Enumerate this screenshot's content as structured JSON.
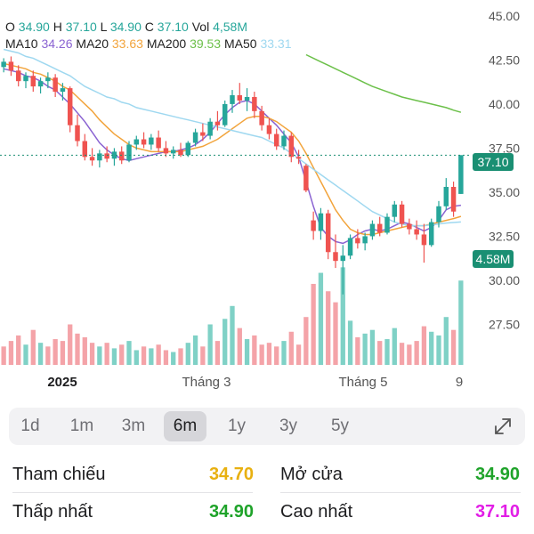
{
  "legend": {
    "open_label": "O",
    "open": "34.90",
    "high_label": "H",
    "high": "37.10",
    "low_label": "L",
    "low": "34.90",
    "close_label": "C",
    "close": "37.10",
    "vol_label": "Vol",
    "vol": "4,58M",
    "ma10_label": "MA10",
    "ma10": "34.26",
    "ma20_label": "MA20",
    "ma20": "33.63",
    "ma200_label": "MA200",
    "ma200": "39.53",
    "ma50_label": "MA50",
    "ma50": "33.31"
  },
  "colors": {
    "up": "#26a69a",
    "down": "#ef5350",
    "up_volume": "#7fd1c6",
    "down_volume": "#f4a3a8",
    "ma10": "#8a63d2",
    "ma20": "#f2a43c",
    "ma200": "#6cc04a",
    "ma50": "#9fd8f0",
    "accent": "#1a8f73"
  },
  "price_tag": "37.10",
  "volume_tag": "4.58M",
  "chart_data": {
    "type": "candlestick",
    "y_axis_ticks": [
      "45.00",
      "42.50",
      "40.00",
      "37.50",
      "35.00",
      "32.50",
      "30.00",
      "27.50"
    ],
    "y_axis_values": [
      45.0,
      42.5,
      40.0,
      37.5,
      35.0,
      32.5,
      30.0,
      27.5
    ],
    "ylim": [
      25.2,
      45.5
    ],
    "x_axis_labels": [
      "2025",
      "Tháng 3",
      "Tháng 5",
      "9"
    ],
    "last_close": 37.1,
    "last_volume": "4.58M",
    "grid": false,
    "series": [
      {
        "name": "MA10",
        "values": [
          42.0,
          41.9,
          41.8,
          41.6,
          41.5,
          41.3,
          41.0,
          40.8,
          40.4,
          40.0,
          39.5,
          39.0,
          38.4,
          37.8,
          37.4,
          37.1,
          36.9,
          36.8,
          36.9,
          37.0,
          37.1,
          37.2,
          37.3,
          37.3,
          37.4,
          37.5,
          37.7,
          38.0,
          38.4,
          38.9,
          39.4,
          39.8,
          40.1,
          40.2,
          40.0,
          39.6,
          39.2,
          38.8,
          38.3,
          37.8,
          37.0,
          35.6,
          34.2,
          33.0,
          32.5,
          32.2,
          32.1,
          32.3,
          32.6,
          32.8,
          32.9,
          32.8,
          32.9,
          33.1,
          33.3,
          33.2,
          33.0,
          32.8,
          33.0,
          33.4,
          34.0,
          34.2,
          34.26
        ]
      },
      {
        "name": "MA20",
        "values": [
          42.3,
          42.2,
          42.1,
          42.0,
          41.8,
          41.7,
          41.5,
          41.3,
          41.0,
          40.8,
          40.4,
          40.0,
          39.6,
          39.1,
          38.7,
          38.3,
          38.0,
          37.7,
          37.5,
          37.4,
          37.3,
          37.3,
          37.3,
          37.3,
          37.3,
          37.4,
          37.5,
          37.6,
          37.8,
          38.0,
          38.3,
          38.6,
          38.9,
          39.2,
          39.3,
          39.3,
          39.2,
          39.0,
          38.7,
          38.4,
          37.9,
          37.2,
          36.4,
          35.6,
          34.8,
          34.0,
          33.4,
          32.9,
          32.7,
          32.6,
          32.6,
          32.7,
          32.8,
          32.9,
          33.0,
          33.1,
          33.1,
          33.1,
          33.2,
          33.3,
          33.4,
          33.5,
          33.63
        ]
      },
      {
        "name": "MA50",
        "values": [
          43.1,
          43.0,
          42.9,
          42.7,
          42.6,
          42.4,
          42.2,
          42.0,
          41.8,
          41.6,
          41.3,
          41.0,
          40.8,
          40.6,
          40.4,
          40.3,
          40.1,
          40.0,
          39.8,
          39.7,
          39.6,
          39.5,
          39.4,
          39.3,
          39.2,
          39.1,
          39.0,
          38.9,
          38.8,
          38.7,
          38.6,
          38.5,
          38.4,
          38.3,
          38.2,
          38.1,
          37.9,
          37.7,
          37.5,
          37.2,
          36.9,
          36.6,
          36.3,
          36.0,
          35.7,
          35.4,
          35.1,
          34.8,
          34.5,
          34.2,
          33.9,
          33.7,
          33.5,
          33.3,
          33.2,
          33.1,
          33.1,
          33.1,
          33.15,
          33.2,
          33.25,
          33.28,
          33.31
        ]
      },
      {
        "name": "MA200",
        "values": [
          null,
          null,
          null,
          null,
          null,
          null,
          null,
          null,
          null,
          null,
          null,
          null,
          null,
          null,
          null,
          null,
          null,
          null,
          null,
          null,
          null,
          null,
          null,
          null,
          null,
          null,
          null,
          null,
          null,
          null,
          null,
          null,
          null,
          null,
          null,
          null,
          null,
          null,
          null,
          null,
          null,
          42.8,
          42.6,
          42.4,
          42.2,
          42.0,
          41.8,
          41.6,
          41.4,
          41.2,
          41.0,
          40.85,
          40.7,
          40.55,
          40.4,
          40.3,
          40.2,
          40.1,
          40.0,
          39.9,
          39.8,
          39.65,
          39.53
        ]
      }
    ],
    "candles": [
      [
        42.1,
        42.6,
        41.8,
        42.4
      ],
      [
        42.4,
        42.7,
        41.6,
        41.9
      ],
      [
        41.9,
        42.2,
        41.0,
        41.3
      ],
      [
        41.3,
        41.8,
        40.9,
        41.6
      ],
      [
        41.6,
        41.9,
        40.7,
        41.0
      ],
      [
        41.0,
        41.5,
        40.6,
        41.3
      ],
      [
        41.3,
        41.8,
        40.9,
        41.5
      ],
      [
        41.5,
        41.7,
        40.4,
        40.7
      ],
      [
        40.7,
        41.2,
        40.2,
        40.9
      ],
      [
        40.9,
        41.0,
        38.4,
        38.8
      ],
      [
        38.8,
        39.4,
        37.6,
        37.9
      ],
      [
        37.9,
        38.3,
        36.8,
        37.0
      ],
      [
        37.0,
        37.5,
        36.5,
        36.8
      ],
      [
        36.8,
        37.4,
        36.4,
        37.2
      ],
      [
        37.2,
        37.6,
        36.7,
        36.9
      ],
      [
        36.9,
        37.5,
        36.5,
        37.3
      ],
      [
        37.3,
        37.6,
        36.6,
        36.8
      ],
      [
        36.8,
        37.9,
        36.7,
        37.7
      ],
      [
        37.7,
        38.2,
        37.4,
        38.0
      ],
      [
        38.0,
        38.4,
        37.5,
        37.7
      ],
      [
        37.7,
        38.3,
        37.4,
        38.1
      ],
      [
        38.1,
        38.5,
        37.3,
        37.5
      ],
      [
        37.5,
        37.9,
        37.0,
        37.2
      ],
      [
        37.2,
        37.6,
        36.9,
        37.4
      ],
      [
        37.4,
        37.8,
        37.0,
        37.1
      ],
      [
        37.1,
        37.9,
        37.0,
        37.8
      ],
      [
        37.8,
        38.6,
        37.6,
        38.4
      ],
      [
        38.4,
        38.9,
        37.9,
        38.2
      ],
      [
        38.2,
        39.2,
        38.0,
        39.0
      ],
      [
        39.0,
        39.6,
        38.5,
        38.8
      ],
      [
        38.8,
        40.2,
        38.7,
        40.0
      ],
      [
        40.0,
        40.8,
        39.5,
        40.5
      ],
      [
        40.5,
        41.2,
        40.0,
        40.2
      ],
      [
        40.2,
        40.9,
        39.6,
        40.4
      ],
      [
        40.4,
        40.7,
        39.2,
        39.6
      ],
      [
        39.6,
        39.9,
        38.5,
        38.8
      ],
      [
        38.8,
        39.2,
        38.0,
        38.3
      ],
      [
        38.3,
        38.6,
        37.4,
        37.6
      ],
      [
        37.6,
        38.5,
        37.4,
        38.2
      ],
      [
        38.2,
        38.4,
        36.7,
        37.0
      ],
      [
        37.0,
        37.4,
        36.6,
        36.9
      ],
      [
        36.5,
        36.6,
        35.0,
        35.1
      ],
      [
        33.4,
        33.9,
        32.3,
        32.8
      ],
      [
        32.8,
        34.1,
        32.3,
        33.8
      ],
      [
        33.8,
        34.0,
        31.2,
        31.6
      ],
      [
        31.6,
        32.6,
        30.7,
        31.1
      ],
      [
        31.1,
        32.0,
        29.2,
        31.4
      ],
      [
        31.4,
        32.6,
        31.2,
        32.4
      ],
      [
        32.4,
        32.9,
        31.8,
        32.1
      ],
      [
        32.1,
        32.7,
        31.7,
        32.5
      ],
      [
        32.5,
        33.4,
        32.3,
        33.2
      ],
      [
        33.2,
        33.6,
        32.5,
        32.7
      ],
      [
        32.7,
        33.8,
        32.6,
        33.6
      ],
      [
        33.6,
        34.5,
        33.3,
        34.3
      ],
      [
        34.3,
        34.5,
        33.0,
        33.2
      ],
      [
        33.2,
        33.5,
        32.6,
        32.9
      ],
      [
        32.9,
        33.4,
        32.3,
        32.6
      ],
      [
        32.6,
        33.2,
        31.0,
        32.0
      ],
      [
        32.0,
        33.5,
        31.9,
        33.3
      ],
      [
        33.3,
        34.5,
        33.0,
        34.2
      ],
      [
        34.2,
        35.8,
        34.0,
        35.3
      ],
      [
        35.3,
        35.6,
        33.6,
        33.9
      ],
      [
        34.9,
        37.1,
        34.9,
        37.1
      ]
    ],
    "volumes": [
      [
        1.0,
        0
      ],
      [
        1.3,
        0
      ],
      [
        1.6,
        0
      ],
      [
        1.1,
        1
      ],
      [
        1.9,
        0
      ],
      [
        1.2,
        1
      ],
      [
        1.0,
        0
      ],
      [
        1.4,
        0
      ],
      [
        1.3,
        0
      ],
      [
        2.2,
        0
      ],
      [
        1.7,
        0
      ],
      [
        1.5,
        0
      ],
      [
        1.2,
        0
      ],
      [
        1.0,
        1
      ],
      [
        1.2,
        0
      ],
      [
        0.9,
        1
      ],
      [
        1.1,
        0
      ],
      [
        1.3,
        1
      ],
      [
        0.8,
        1
      ],
      [
        1.0,
        0
      ],
      [
        0.9,
        1
      ],
      [
        1.1,
        0
      ],
      [
        0.8,
        0
      ],
      [
        0.7,
        1
      ],
      [
        0.9,
        0
      ],
      [
        1.2,
        1
      ],
      [
        1.6,
        1
      ],
      [
        1.0,
        0
      ],
      [
        2.2,
        1
      ],
      [
        1.3,
        0
      ],
      [
        2.5,
        1
      ],
      [
        3.2,
        1
      ],
      [
        2.0,
        0
      ],
      [
        1.4,
        1
      ],
      [
        1.6,
        0
      ],
      [
        1.1,
        0
      ],
      [
        1.2,
        0
      ],
      [
        1.0,
        0
      ],
      [
        1.3,
        1
      ],
      [
        1.8,
        0
      ],
      [
        1.1,
        0
      ],
      [
        2.6,
        0
      ],
      [
        4.4,
        0
      ],
      [
        5.0,
        1
      ],
      [
        4.0,
        0
      ],
      [
        3.4,
        0
      ],
      [
        5.3,
        1
      ],
      [
        2.4,
        1
      ],
      [
        1.5,
        0
      ],
      [
        1.7,
        1
      ],
      [
        1.9,
        1
      ],
      [
        1.3,
        0
      ],
      [
        1.4,
        1
      ],
      [
        2.0,
        1
      ],
      [
        1.2,
        0
      ],
      [
        1.1,
        0
      ],
      [
        1.3,
        0
      ],
      [
        2.1,
        0
      ],
      [
        1.8,
        1
      ],
      [
        1.6,
        1
      ],
      [
        2.6,
        1
      ],
      [
        1.9,
        0
      ],
      [
        4.58,
        1
      ]
    ],
    "volume_ylim": [
      0,
      5.8
    ]
  },
  "periods": {
    "p1d": "1d",
    "p1m": "1m",
    "p3m": "3m",
    "p6m": "6m",
    "p1y": "1y",
    "p3y": "3y",
    "p5y": "5y"
  },
  "stats": {
    "ref_label": "Tham chiếu",
    "ref_value": "34.70",
    "ref_color": "#e8b010",
    "open_label": "Mở cửa",
    "open_value": "34.90",
    "open_color": "#1fa32a",
    "low_label": "Thấp nhất",
    "low_value": "34.90",
    "low_color": "#1fa32a",
    "high_label": "Cao nhất",
    "high_value": "37.10",
    "high_color": "#e21ee6"
  }
}
